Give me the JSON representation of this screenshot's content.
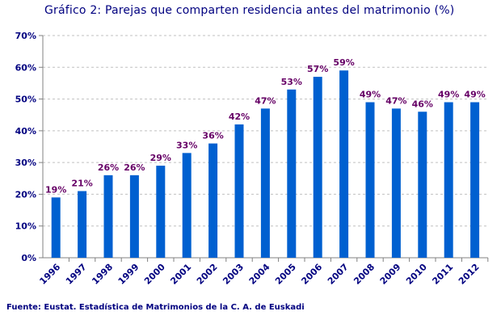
{
  "chart_data": {
    "type": "bar",
    "title": "Gráfico 2: Parejas que comparten residencia antes del matrimonio (%)",
    "source": "Fuente: Eustat. Estadística de Matrimonios de la C. A. de Euskadi",
    "categories": [
      "1996",
      "1997",
      "1998",
      "1999",
      "2000",
      "2001",
      "2002",
      "2003",
      "2004",
      "2005",
      "2006",
      "2007",
      "2008",
      "2009",
      "2010",
      "2011",
      "2012"
    ],
    "values": [
      19,
      21,
      26,
      26,
      29,
      33,
      36,
      42,
      47,
      53,
      57,
      59,
      49,
      47,
      46,
      49,
      49
    ],
    "data_labels": [
      "19%",
      "21%",
      "26%",
      "26%",
      "29%",
      "33%",
      "36%",
      "42%",
      "47%",
      "53%",
      "57%",
      "59%",
      "49%",
      "47%",
      "46%",
      "49%",
      "49%"
    ],
    "ylim": [
      0,
      70
    ],
    "yticks": [
      "0%",
      "10%",
      "20%",
      "30%",
      "40%",
      "50%",
      "60%",
      "70%"
    ],
    "grid": true,
    "bar_color": "#0060D0",
    "label_color": "#660066",
    "axis_text_color": "#000080"
  }
}
